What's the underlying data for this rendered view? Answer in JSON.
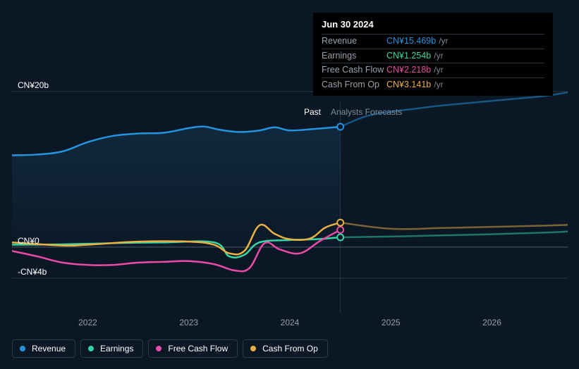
{
  "background_color": "#0b1725",
  "chart": {
    "type": "line",
    "y_axis": {
      "ticks": [
        {
          "label": "CN¥20b",
          "value": 20
        },
        {
          "label": "CN¥0",
          "value": 0
        },
        {
          "label": "-CN¥4b",
          "value": -4
        }
      ],
      "min": -4,
      "max": 20,
      "baseline_color": "#3a4450",
      "gridline_color": "#2a3644"
    },
    "x_axis": {
      "ticks": [
        {
          "label": "2022",
          "value": 2022
        },
        {
          "label": "2023",
          "value": 2023
        },
        {
          "label": "2024",
          "value": 2024
        },
        {
          "label": "2025",
          "value": 2025
        },
        {
          "label": "2026",
          "value": 2026
        }
      ],
      "min": 2021.25,
      "max": 2026.75
    },
    "divider_x": 2024.5,
    "past_label": "Past",
    "forecast_label": "Analysts Forecasts",
    "past_shade_color": "#1a4a6b",
    "past_shade_opacity": 0.35,
    "forecast_line_opacity": 0.5,
    "line_width": 2.5,
    "series": [
      {
        "name": "Revenue",
        "color": "#2394df",
        "legend": "Revenue",
        "points": [
          [
            2021.25,
            11.8
          ],
          [
            2021.5,
            11.9
          ],
          [
            2021.75,
            12.3
          ],
          [
            2022.0,
            13.5
          ],
          [
            2022.25,
            14.3
          ],
          [
            2022.5,
            14.6
          ],
          [
            2022.75,
            14.7
          ],
          [
            2023.0,
            15.3
          ],
          [
            2023.15,
            15.5
          ],
          [
            2023.3,
            15.1
          ],
          [
            2023.5,
            14.8
          ],
          [
            2023.7,
            15.0
          ],
          [
            2023.85,
            15.4
          ],
          [
            2024.0,
            15.0
          ],
          [
            2024.25,
            15.2
          ],
          [
            2024.5,
            15.469
          ],
          [
            2024.5,
            15.469
          ],
          [
            2024.75,
            16.8
          ],
          [
            2025.0,
            17.4
          ],
          [
            2025.25,
            17.8
          ],
          [
            2025.5,
            18.2
          ],
          [
            2026.0,
            18.8
          ],
          [
            2026.5,
            19.4
          ],
          [
            2026.75,
            19.9
          ]
        ],
        "marker_at": 2024.5
      },
      {
        "name": "Earnings",
        "color": "#33d6a4",
        "legend": "Earnings",
        "points": [
          [
            2021.25,
            0.3
          ],
          [
            2021.75,
            0.35
          ],
          [
            2022.25,
            0.5
          ],
          [
            2022.75,
            0.6
          ],
          [
            2023.25,
            0.6
          ],
          [
            2023.4,
            -1.2
          ],
          [
            2023.55,
            -1.0
          ],
          [
            2023.7,
            0.6
          ],
          [
            2024.0,
            0.9
          ],
          [
            2024.25,
            1.0
          ],
          [
            2024.5,
            1.254
          ],
          [
            2024.5,
            1.254
          ],
          [
            2025.0,
            1.35
          ],
          [
            2025.5,
            1.5
          ],
          [
            2026.0,
            1.65
          ],
          [
            2026.5,
            1.85
          ],
          [
            2026.75,
            2.0
          ]
        ],
        "marker_at": 2024.5
      },
      {
        "name": "Free Cash Flow",
        "color": "#e94ba5",
        "legend": "Free Cash Flow",
        "points": [
          [
            2021.25,
            -0.5
          ],
          [
            2021.5,
            -1.2
          ],
          [
            2021.75,
            -2.0
          ],
          [
            2022.0,
            -2.3
          ],
          [
            2022.25,
            -2.3
          ],
          [
            2022.5,
            -2.0
          ],
          [
            2022.75,
            -1.9
          ],
          [
            2023.0,
            -1.8
          ],
          [
            2023.25,
            -2.2
          ],
          [
            2023.45,
            -3.0
          ],
          [
            2023.6,
            -2.7
          ],
          [
            2023.75,
            0.5
          ],
          [
            2023.9,
            -0.3
          ],
          [
            2024.1,
            -0.8
          ],
          [
            2024.3,
            0.8
          ],
          [
            2024.5,
            2.218
          ]
        ],
        "marker_at": 2024.5
      },
      {
        "name": "Cash From Op",
        "color": "#eab043",
        "legend": "Cash From Op",
        "points": [
          [
            2021.25,
            0.6
          ],
          [
            2021.75,
            0.2
          ],
          [
            2022.0,
            0.3
          ],
          [
            2022.5,
            0.7
          ],
          [
            2023.0,
            0.7
          ],
          [
            2023.25,
            0.3
          ],
          [
            2023.4,
            -0.8
          ],
          [
            2023.55,
            -0.5
          ],
          [
            2023.7,
            2.8
          ],
          [
            2023.85,
            1.7
          ],
          [
            2024.0,
            1.0
          ],
          [
            2024.2,
            1.1
          ],
          [
            2024.35,
            2.5
          ],
          [
            2024.5,
            3.141
          ],
          [
            2024.5,
            3.141
          ],
          [
            2025.0,
            2.35
          ],
          [
            2025.5,
            2.45
          ],
          [
            2026.0,
            2.6
          ],
          [
            2026.5,
            2.75
          ],
          [
            2026.75,
            2.85
          ]
        ],
        "marker_at": 2024.5
      }
    ]
  },
  "tooltip": {
    "date": "Jun 30 2024",
    "suffix": "/yr",
    "rows": [
      {
        "label": "Revenue",
        "value": "CN¥15.469b",
        "color": "#2394df"
      },
      {
        "label": "Earnings",
        "value": "CN¥1.254b",
        "color": "#33d6a4"
      },
      {
        "label": "Free Cash Flow",
        "value": "CN¥2.218b",
        "color": "#e94ba5"
      },
      {
        "label": "Cash From Op",
        "value": "CN¥3.141b",
        "color": "#eab043"
      }
    ]
  },
  "legend": [
    {
      "label": "Revenue",
      "color": "#2394df"
    },
    {
      "label": "Earnings",
      "color": "#33d6a4"
    },
    {
      "label": "Free Cash Flow",
      "color": "#e94ba5"
    },
    {
      "label": "Cash From Op",
      "color": "#eab043"
    }
  ]
}
